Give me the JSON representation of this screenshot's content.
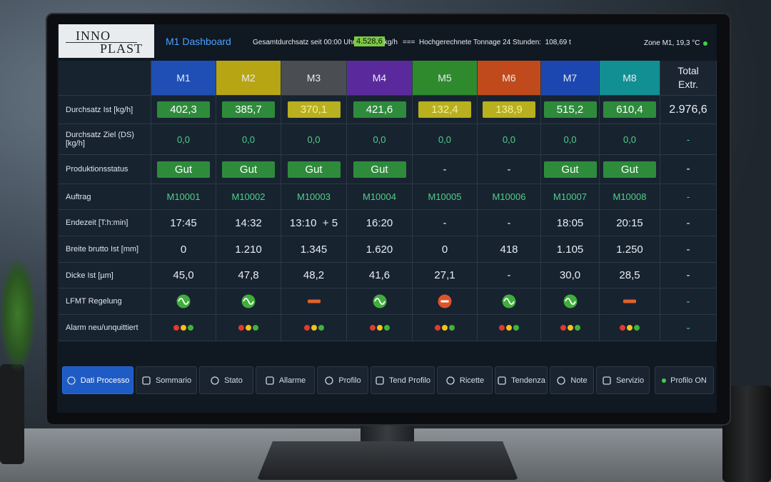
{
  "header": {
    "logo_top": "INNO",
    "logo_bottom": "PLAST",
    "title": "M1 Dashboard",
    "throughput_label": "Gesamtdurchsatz seit 00:00 Uhr:",
    "throughput_value": "4.528,6",
    "throughput_unit": "kg/h",
    "separator": "===",
    "forecast": "Hochgerechnete Tonnage 24 Stunden:  108,69 t",
    "zone": "Zone M1, 19,3 °C"
  },
  "table": {
    "columns": [
      {
        "label": "M1",
        "color": "#1f4fb5"
      },
      {
        "label": "M2",
        "color": "#b7a514"
      },
      {
        "label": "M3",
        "color": "#4a4d52"
      },
      {
        "label": "M4",
        "color": "#5a2a9c"
      },
      {
        "label": "M5",
        "color": "#2f8a2e"
      },
      {
        "label": "M6",
        "color": "#c04a1c"
      },
      {
        "label": "M7",
        "color": "#1d47b0"
      },
      {
        "label": "M8",
        "color": "#128f93"
      },
      {
        "label": "Total Extr.",
        "color": "#1b2431"
      }
    ],
    "rows": [
      {
        "label": "Durchsatz Ist [kg/h]",
        "cells": [
          "402,3",
          "385,7",
          "370,1",
          "421,6",
          "132,4",
          "138,9",
          "515,2",
          "610,4",
          "2.976,6"
        ],
        "badges": [
          "green",
          "green",
          "yellow",
          "green",
          "yellow",
          "yellow",
          "green",
          "green",
          null
        ]
      },
      {
        "label": "Durchsatz Ziel (DS) [kg/h]",
        "cells": [
          "0,0",
          "0,0",
          "0,0",
          "0,0",
          "0,0",
          "0,0",
          "0,0",
          "0,0",
          "-"
        ],
        "color": "#4fd08a"
      },
      {
        "label": "Produktionsstatus",
        "cells": [
          "Gut",
          "Gut",
          "Gut",
          "Gut",
          "-",
          "-",
          "Gut",
          "Gut",
          "-"
        ],
        "badges": [
          "green",
          "green",
          "green",
          "green",
          null,
          null,
          "green",
          "green",
          null
        ]
      },
      {
        "label": "Auftrag",
        "cells": [
          "M10001",
          "M10002",
          "M10003",
          "M10004",
          "M10005",
          "M10006",
          "M10007",
          "M10008",
          "-"
        ],
        "color": "#4fd08a"
      },
      {
        "label": "Endezeit [T:h:min]",
        "cells": [
          "17:45",
          "14:32",
          "13:10  + 5",
          "16:20",
          "-",
          "-",
          "18:05",
          "20:15",
          "-"
        ]
      },
      {
        "label": "Breite brutto Ist [mm]",
        "cells": [
          "0",
          "1.210",
          "1.345",
          "1.620",
          "0",
          "418",
          "1.105",
          "1.250",
          "-"
        ]
      },
      {
        "label": "Dicke Ist [µm]",
        "cells": [
          "45,0",
          "47,8",
          "48,2",
          "41,6",
          "27,1",
          "-",
          "30,0",
          "28,5",
          "-"
        ]
      },
      {
        "label": "LFMT Regelung",
        "icons": [
          "wave",
          "wave",
          "dash",
          "wave",
          "stop",
          "wave",
          "wave",
          "dash"
        ],
        "total": "-"
      },
      {
        "label": "Alarm neu/unquittiert",
        "icons": [
          "lights",
          "lights",
          "lights",
          "lights",
          "lights",
          "lights",
          "lights",
          "lights"
        ],
        "total": "-"
      }
    ]
  },
  "nav": {
    "items": [
      "Dati Processo",
      "Sommario",
      "Stato",
      "Allarme",
      "Profilo",
      "Tend Profilo",
      "Ricette",
      "Tendenza",
      "Note",
      "Servizio"
    ],
    "active": 0,
    "profile": "Profilo ON"
  }
}
